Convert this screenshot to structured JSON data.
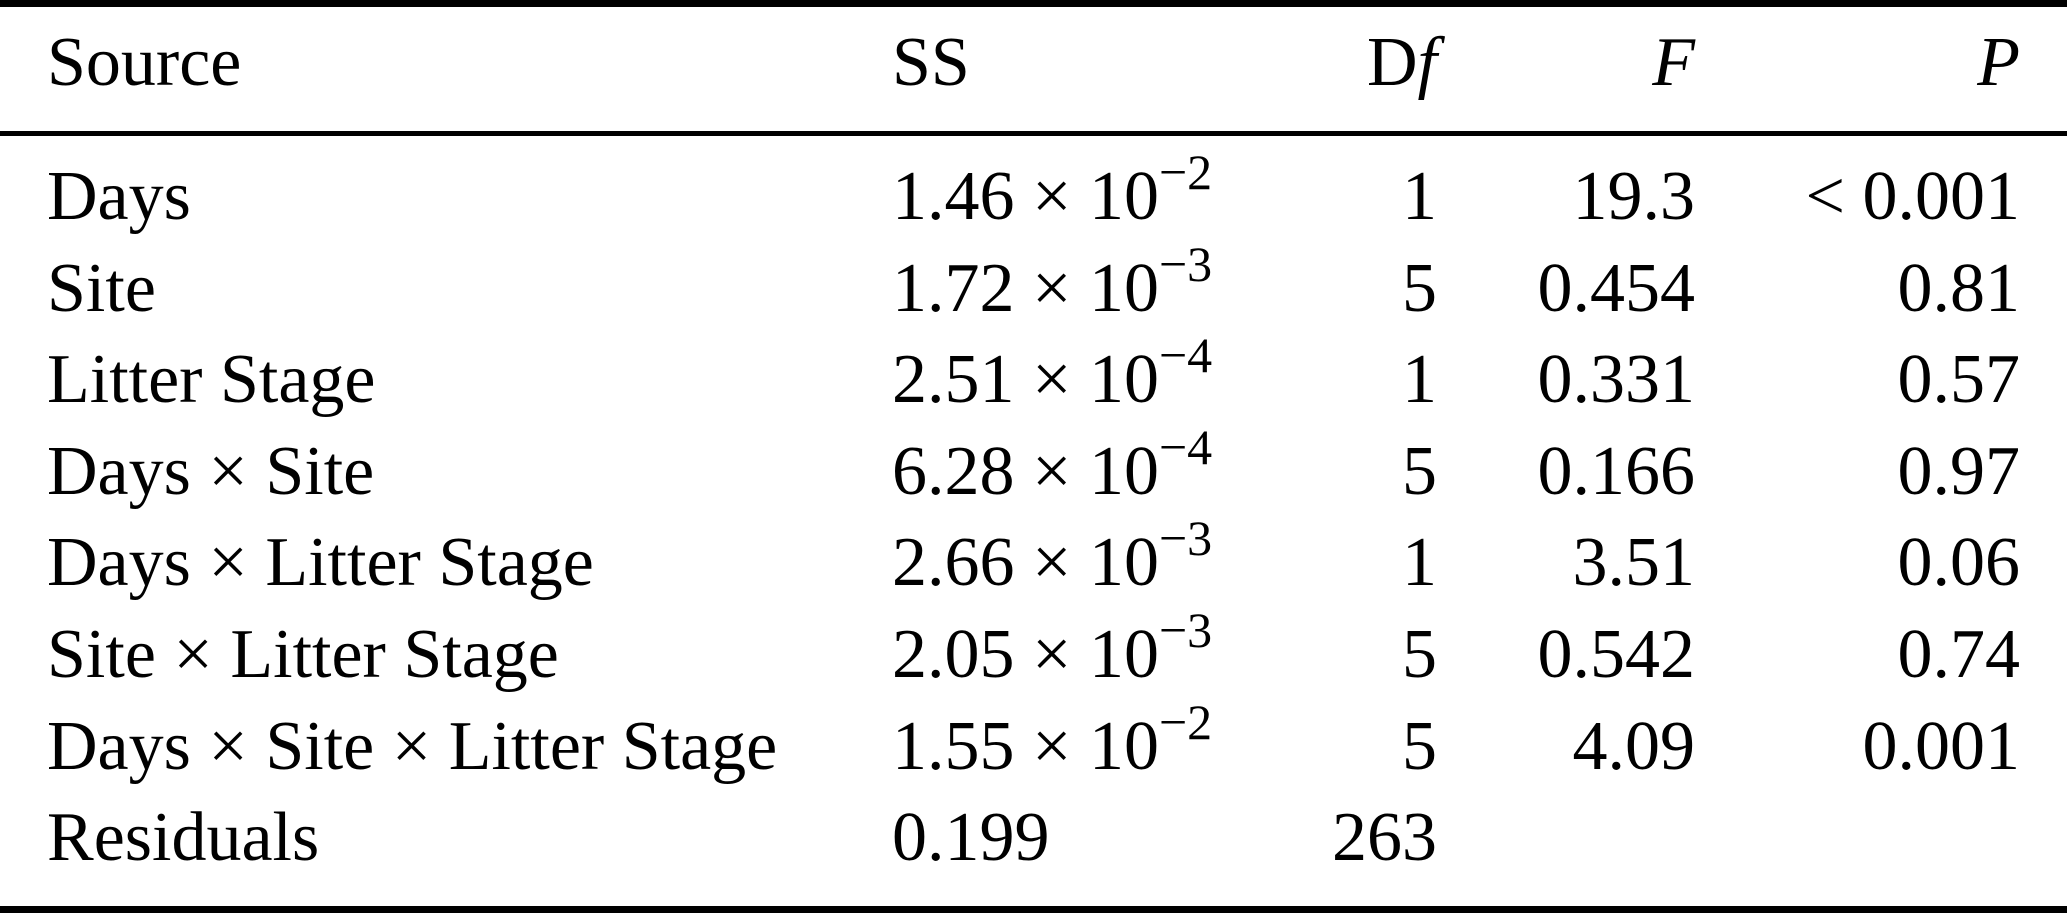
{
  "page": {
    "background": "#ffffff",
    "text_color": "#000000"
  },
  "table": {
    "columns": [
      {
        "id": "source",
        "label": "Source",
        "align": "left"
      },
      {
        "id": "ss",
        "label": "SS",
        "align": "left"
      },
      {
        "id": "df",
        "label": "Df",
        "align": "right"
      },
      {
        "id": "f",
        "label": "F",
        "align": "right"
      },
      {
        "id": "p",
        "label": "P",
        "align": "right"
      }
    ],
    "times_symbol": "×",
    "power_base": "10",
    "rows": [
      {
        "source": "Days",
        "ss_mantissa": "1.46",
        "ss_exponent": "−2",
        "df": "1",
        "f": "19.3",
        "p": "< 0.001"
      },
      {
        "source": "Site",
        "ss_mantissa": "1.72",
        "ss_exponent": "−3",
        "df": "5",
        "f": "0.454",
        "p": "0.81"
      },
      {
        "source": "Litter Stage",
        "ss_mantissa": "2.51",
        "ss_exponent": "−4",
        "df": "1",
        "f": "0.331",
        "p": "0.57"
      },
      {
        "source": "Days × Site",
        "ss_mantissa": "6.28",
        "ss_exponent": "−4",
        "df": "5",
        "f": "0.166",
        "p": "0.97"
      },
      {
        "source": "Days × Litter Stage",
        "ss_mantissa": "2.66",
        "ss_exponent": "−3",
        "df": "1",
        "f": "3.51",
        "p": "0.06"
      },
      {
        "source": "Site × Litter Stage",
        "ss_mantissa": "2.05",
        "ss_exponent": "−3",
        "df": "5",
        "f": "0.542",
        "p": "0.74"
      },
      {
        "source": "Days × Site × Litter Stage",
        "ss_mantissa": "1.55",
        "ss_exponent": "−2",
        "df": "5",
        "f": "4.09",
        "p": "0.001"
      },
      {
        "source": "Residuals",
        "ss_mantissa": "0.199",
        "ss_exponent": null,
        "df": "263",
        "f": "",
        "p": ""
      }
    ]
  }
}
